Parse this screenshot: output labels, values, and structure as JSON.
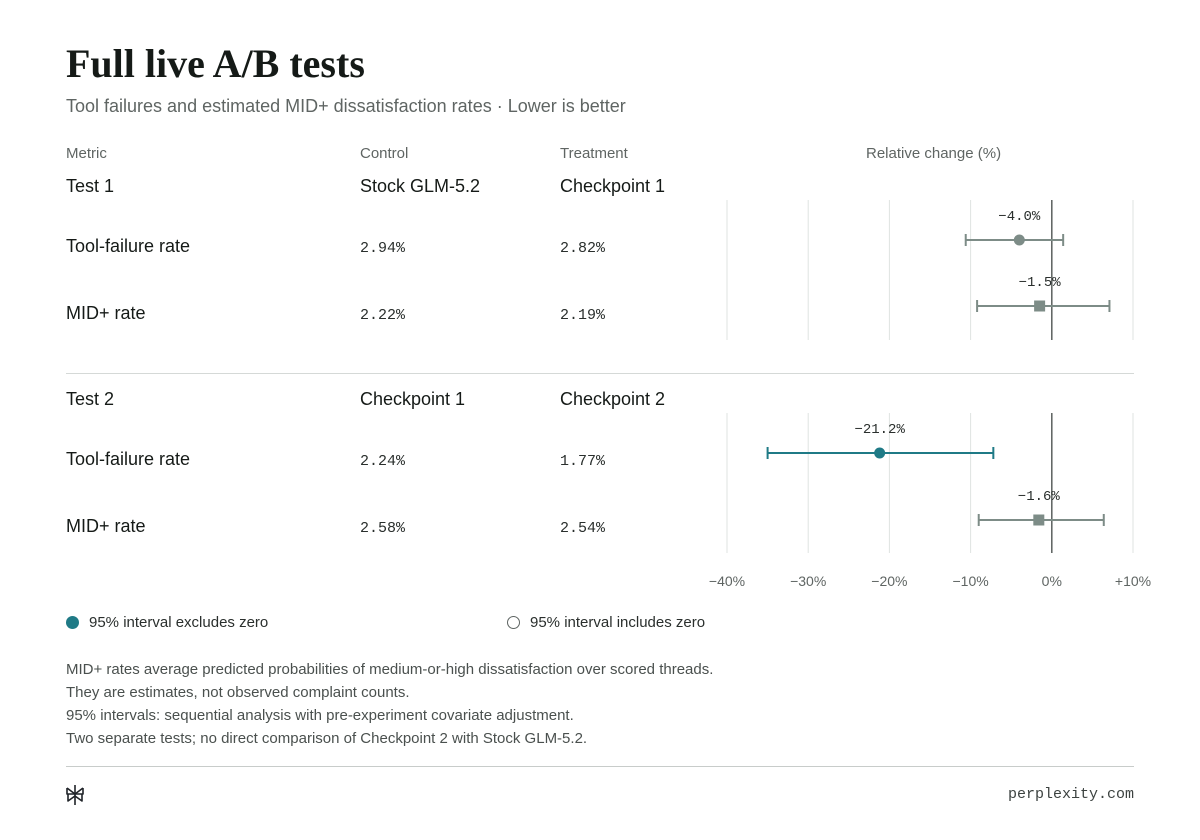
{
  "header": {
    "title": "Full live A/B tests",
    "subtitle": "Tool failures and estimated MID+ dissatisfaction rates · Lower is better"
  },
  "columns": {
    "metric": "Metric",
    "control": "Control",
    "treatment": "Treatment",
    "change": "Relative change (%)"
  },
  "tests": [
    {
      "name": "Test 1",
      "control": "Stock GLM-5.2",
      "treatment": "Checkpoint 1",
      "rows": [
        {
          "metric": "Tool-failure rate",
          "control_value": "2.94%",
          "treatment_value": "2.82%"
        },
        {
          "metric": "MID+ rate",
          "control_value": "2.22%",
          "treatment_value": "2.19%"
        }
      ]
    },
    {
      "name": "Test 2",
      "control": "Checkpoint 1",
      "treatment": "Checkpoint 2",
      "rows": [
        {
          "metric": "Tool-failure rate",
          "control_value": "2.24%",
          "treatment_value": "1.77%"
        },
        {
          "metric": "MID+ rate",
          "control_value": "2.58%",
          "treatment_value": "2.54%"
        }
      ]
    }
  ],
  "legend": {
    "excludes_zero": "95% interval excludes zero",
    "includes_zero": "95% interval includes zero"
  },
  "notes": [
    "MID+ rates average predicted probabilities of medium-or-high dissatisfaction over scored threads.",
    "They are estimates, not observed complaint counts.",
    "95% intervals: sequential analysis with pre-experiment covariate adjustment.",
    "Two separate tests; no direct comparison of Checkpoint 2 with Stock GLM-5.2."
  ],
  "footer": {
    "site": "perplexity.com",
    "logo_icon": "perplexity-logo-icon"
  },
  "colors": {
    "significant": "#1f7a86",
    "not_significant": "#7d8c87",
    "zero_line": "#5b615f",
    "grid": "#dfe3e1"
  },
  "chart_data": {
    "type": "forest",
    "xlabel": "Relative change (%)",
    "xlim": [
      -40,
      10
    ],
    "xticks": [
      -40,
      -30,
      -20,
      -10,
      0,
      10
    ],
    "xtick_labels": [
      "−40%",
      "−30%",
      "−20%",
      "−10%",
      "0%",
      "+10%"
    ],
    "grid": true,
    "points": [
      {
        "test": "Test 1",
        "metric": "Tool-failure rate",
        "estimate": -4.0,
        "label": "−4.0%",
        "ci": [
          -10.6,
          1.4
        ],
        "marker": "circle",
        "significant": false
      },
      {
        "test": "Test 1",
        "metric": "MID+ rate",
        "estimate": -1.5,
        "label": "−1.5%",
        "ci": [
          -9.2,
          7.1
        ],
        "marker": "square",
        "significant": false
      },
      {
        "test": "Test 2",
        "metric": "Tool-failure rate",
        "estimate": -21.2,
        "label": "−21.2%",
        "ci": [
          -35.0,
          -7.2
        ],
        "marker": "circle",
        "significant": true
      },
      {
        "test": "Test 2",
        "metric": "MID+ rate",
        "estimate": -1.6,
        "label": "−1.6%",
        "ci": [
          -9.0,
          6.4
        ],
        "marker": "square",
        "significant": false
      }
    ]
  }
}
